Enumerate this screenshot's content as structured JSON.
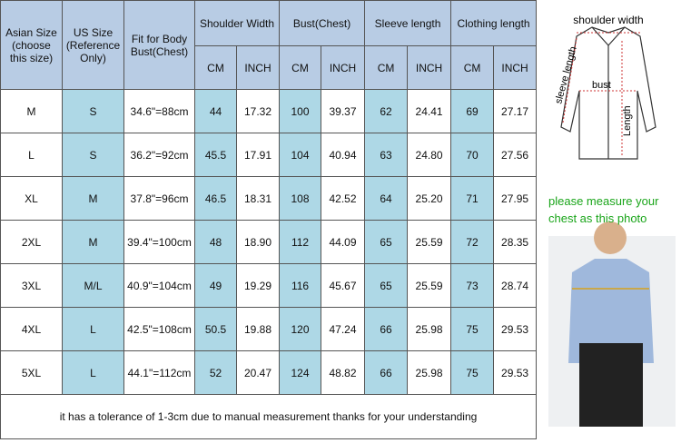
{
  "table": {
    "headers": [
      "Asian Size (choose this size)",
      "US Size (Reference Only)",
      "Fit for Body Bust(Chest)",
      "Shoulder Width",
      "Bust(Chest)",
      "Sleeve length",
      "Clothing length"
    ],
    "units": [
      "CM",
      "INCH"
    ],
    "rows": [
      [
        "M",
        "S",
        "34.6\"=88cm",
        "44",
        "17.32",
        "100",
        "39.37",
        "62",
        "24.41",
        "69",
        "27.17"
      ],
      [
        "L",
        "S",
        "36.2\"=92cm",
        "45.5",
        "17.91",
        "104",
        "40.94",
        "63",
        "24.80",
        "70",
        "27.56"
      ],
      [
        "XL",
        "M",
        "37.8\"=96cm",
        "46.5",
        "18.31",
        "108",
        "42.52",
        "64",
        "25.20",
        "71",
        "27.95"
      ],
      [
        "2XL",
        "M",
        "39.4\"=100cm",
        "48",
        "18.90",
        "112",
        "44.09",
        "65",
        "25.59",
        "72",
        "28.35"
      ],
      [
        "3XL",
        "M/L",
        "40.9\"=104cm",
        "49",
        "19.29",
        "116",
        "45.67",
        "65",
        "25.59",
        "73",
        "28.74"
      ],
      [
        "4XL",
        "L",
        "42.5\"=108cm",
        "50.5",
        "19.88",
        "120",
        "47.24",
        "66",
        "25.98",
        "75",
        "29.53"
      ],
      [
        "5XL",
        "L",
        "44.1\"=112cm",
        "52",
        "20.47",
        "124",
        "48.82",
        "66",
        "25.98",
        "75",
        "29.53"
      ]
    ],
    "note": "it has a tolerance of 1-3cm due to manual measurement thanks for your understanding"
  },
  "diagram": {
    "labels": [
      "shoulder width",
      "bust",
      "sleeve length",
      "Length"
    ]
  },
  "instruction": "please measure your chest as this photo"
}
